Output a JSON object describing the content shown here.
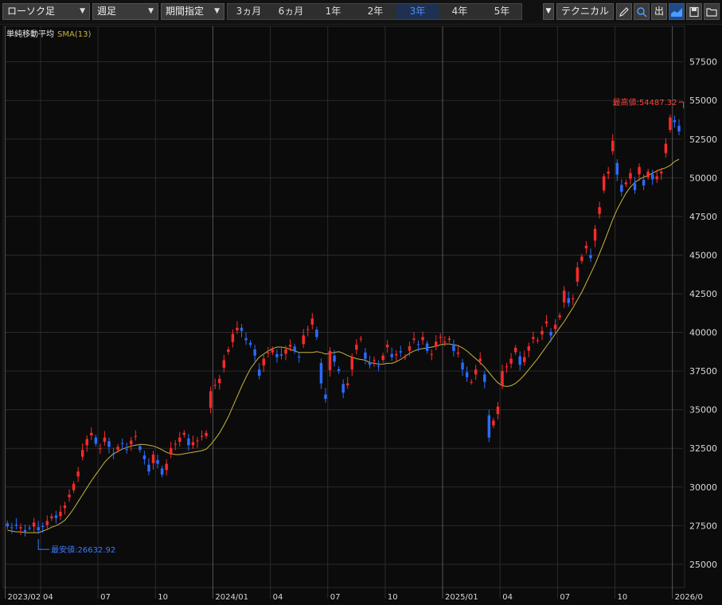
{
  "toolbar": {
    "chart_type": "ローソク足",
    "interval": "週足",
    "range_mode": "期間指定",
    "periods": [
      "3ヵ月",
      "6ヵ月",
      "1年",
      "2年",
      "3年",
      "4年",
      "5年"
    ],
    "active_period": "3年",
    "technical": "テクニカル",
    "icons": [
      "chevron-down-icon",
      "pencil-icon",
      "zoom-icon",
      "export-icon",
      "area-chart-icon",
      "save-icon",
      "folder-icon"
    ],
    "export_label": "出"
  },
  "indicator": {
    "label": "単純移動平均",
    "sma_label": "SMA(13)"
  },
  "annotations": {
    "high_label": "最高値:54487.32",
    "low_label": "最安値:26632.92"
  },
  "colors": {
    "up": "#ff2a2a",
    "down": "#2a6cff",
    "sma": "#c8b43a",
    "grid": "#2b2b2b",
    "background": "#0b0b0b",
    "high_text": "#ff4040",
    "low_text": "#3a7cff"
  },
  "chart_data": {
    "type": "candlestick",
    "interval": "weekly",
    "yticks": [
      25000,
      27500,
      30000,
      32500,
      35000,
      37500,
      40000,
      42500,
      45000,
      47500,
      50000,
      52500,
      55000,
      57500
    ],
    "ylim": [
      23500,
      59800
    ],
    "xticks": [
      "2023/02",
      "04",
      "07",
      "10",
      "2024/01",
      "04",
      "07",
      "10",
      "2025/01",
      "04",
      "07",
      "10",
      "2026/0"
    ],
    "xtick_index": [
      0,
      8,
      21,
      34,
      47,
      60,
      73,
      86,
      99,
      112,
      125,
      138,
      151
    ],
    "high": {
      "value": 54487.32,
      "index": 153
    },
    "low": {
      "value": 26632.92,
      "index": 7
    },
    "close": [
      27450,
      27350,
      27500,
      27400,
      27100,
      27350,
      27700,
      27200,
      27450,
      27800,
      28100,
      28000,
      28400,
      28800,
      29500,
      30200,
      31000,
      32400,
      33100,
      33500,
      32800,
      32500,
      33200,
      32600,
      32100,
      32600,
      32800,
      32400,
      33000,
      33300,
      32400,
      31800,
      31000,
      32100,
      31500,
      30800,
      31500,
      32500,
      32800,
      33200,
      33500,
      32700,
      32900,
      33000,
      33300,
      33500,
      36200,
      36600,
      37000,
      38200,
      38900,
      39900,
      40300,
      40100,
      39500,
      39200,
      38500,
      37200,
      38300,
      38700,
      38900,
      38400,
      38500,
      38900,
      39200,
      38800,
      38400,
      39800,
      40200,
      40900,
      39700,
      36700,
      35700,
      38800,
      38100,
      37500,
      36100,
      36700,
      38400,
      39200,
      39600,
      38300,
      37900,
      38200,
      37800,
      38500,
      39200,
      38400,
      38600,
      38700,
      38400,
      39100,
      39600,
      39200,
      39700,
      38800,
      38600,
      39400,
      39700,
      39400,
      39600,
      38800,
      38700,
      37600,
      37100,
      36800,
      37600,
      38300,
      36800,
      33200,
      34300,
      35200,
      37500,
      37800,
      38300,
      39000,
      37900,
      38400,
      39100,
      39700,
      39500,
      40100,
      40700,
      39800,
      40500,
      41100,
      42700,
      41900,
      42200,
      44200,
      44900,
      45600,
      44800,
      46700,
      48100,
      50100,
      50400,
      52400,
      50200,
      49100,
      49700,
      50300,
      49200,
      50700,
      49500,
      50400,
      49900,
      50100,
      50400,
      52200,
      53900,
      53600,
      53000
    ],
    "sma13": [
      27200,
      27150,
      27100,
      27100,
      27050,
      27050,
      27050,
      27050,
      27150,
      27250,
      27400,
      27500,
      27650,
      27850,
      28200,
      28600,
      29050,
      29500,
      29950,
      30400,
      30800,
      31200,
      31600,
      31900,
      32150,
      32300,
      32450,
      32550,
      32650,
      32700,
      32750,
      32750,
      32700,
      32650,
      32550,
      32400,
      32250,
      32150,
      32100,
      32100,
      32150,
      32200,
      32250,
      32300,
      32350,
      32450,
      32750,
      33100,
      33500,
      34000,
      34550,
      35200,
      35850,
      36500,
      37100,
      37650,
      38050,
      38400,
      38600,
      38800,
      38950,
      39050,
      39050,
      39000,
      38900,
      38800,
      38700,
      38700,
      38700,
      38700,
      38750,
      38700,
      38600,
      38650,
      38700,
      38750,
      38650,
      38500,
      38400,
      38300,
      38250,
      38200,
      38050,
      38000,
      37950,
      37950,
      38000,
      38000,
      38100,
      38250,
      38450,
      38650,
      38800,
      38900,
      38950,
      39000,
      39050,
      39100,
      39200,
      39250,
      39250,
      39200,
      39150,
      39000,
      38800,
      38550,
      38300,
      38050,
      37750,
      37400,
      37050,
      36750,
      36550,
      36500,
      36550,
      36700,
      36950,
      37250,
      37600,
      37950,
      38300,
      38700,
      39100,
      39500,
      39900,
      40300,
      40700,
      41150,
      41600,
      42100,
      42600,
      43200,
      43800,
      44400,
      45100,
      45800,
      46550,
      47300,
      47950,
      48500,
      49000,
      49400,
      49700,
      49900,
      50050,
      50150,
      50300,
      50450,
      50550,
      50650,
      50800,
      51050,
      51200
    ]
  }
}
